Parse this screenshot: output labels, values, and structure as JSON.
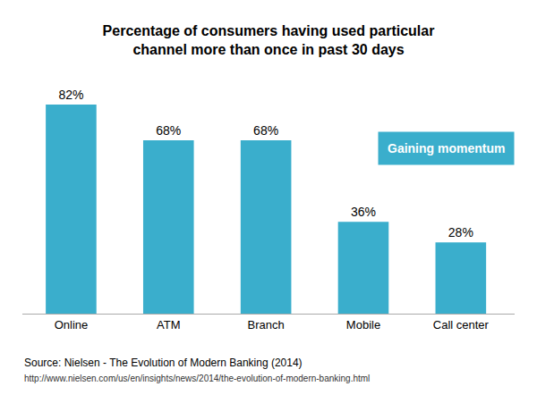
{
  "chart_data": {
    "type": "bar",
    "title": "Percentage of consumers having used particular\nchannel more than once in past 30 days",
    "categories": [
      "Online",
      "ATM",
      "Branch",
      "Mobile",
      "Call center"
    ],
    "values": [
      82,
      68,
      68,
      36,
      28
    ],
    "value_labels": [
      "82%",
      "68%",
      "68%",
      "36%",
      "28%"
    ],
    "data_labels": true,
    "color": "#3AAECC",
    "ylim": [
      0,
      95
    ],
    "grid": false,
    "tick_labels": "x",
    "annotations": [
      {
        "text": "Gaining momentum",
        "color": "#3AAECC"
      },
      {
        "text": "Source: Nielsen - The Evolution of Modern Banking (2014)"
      },
      {
        "text": "http://www.nielsen.com/us/en/insights/news/2014/the-evolution-of-modern-banking.html"
      }
    ]
  }
}
